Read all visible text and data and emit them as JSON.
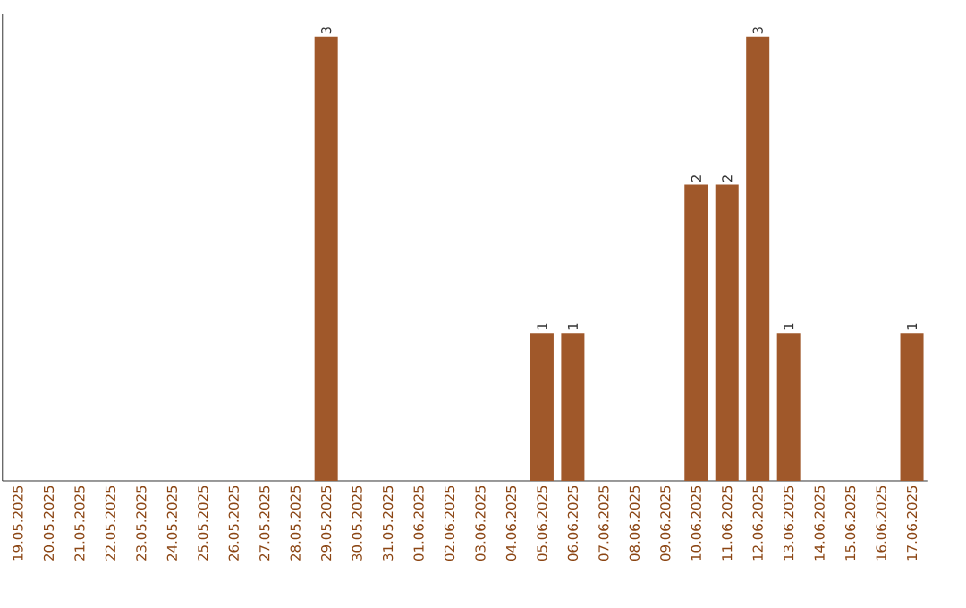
{
  "chart_data": {
    "type": "bar",
    "color": "#a0582a",
    "categories": [
      "19.05.2025",
      "20.05.2025",
      "21.05.2025",
      "22.05.2025",
      "23.05.2025",
      "24.05.2025",
      "25.05.2025",
      "26.05.2025",
      "27.05.2025",
      "28.05.2025",
      "29.05.2025",
      "30.05.2025",
      "31.05.2025",
      "01.06.2025",
      "02.06.2025",
      "03.06.2025",
      "04.06.2025",
      "05.06.2025",
      "06.06.2025",
      "07.06.2025",
      "08.06.2025",
      "09.06.2025",
      "10.06.2025",
      "11.06.2025",
      "12.06.2025",
      "13.06.2025",
      "14.06.2025",
      "15.06.2025",
      "16.06.2025",
      "17.06.2025"
    ],
    "values": [
      0,
      0,
      0,
      0,
      0,
      0,
      0,
      0,
      0,
      0,
      3,
      0,
      0,
      0,
      0,
      0,
      0,
      1,
      1,
      0,
      0,
      0,
      2,
      2,
      3,
      1,
      0,
      0,
      0,
      1
    ],
    "value_labels": [
      null,
      null,
      null,
      null,
      null,
      null,
      null,
      null,
      null,
      null,
      "3",
      null,
      null,
      null,
      null,
      null,
      null,
      "1",
      "1",
      null,
      null,
      null,
      "2",
      "2",
      "3",
      "1",
      null,
      null,
      null,
      "1"
    ]
  }
}
